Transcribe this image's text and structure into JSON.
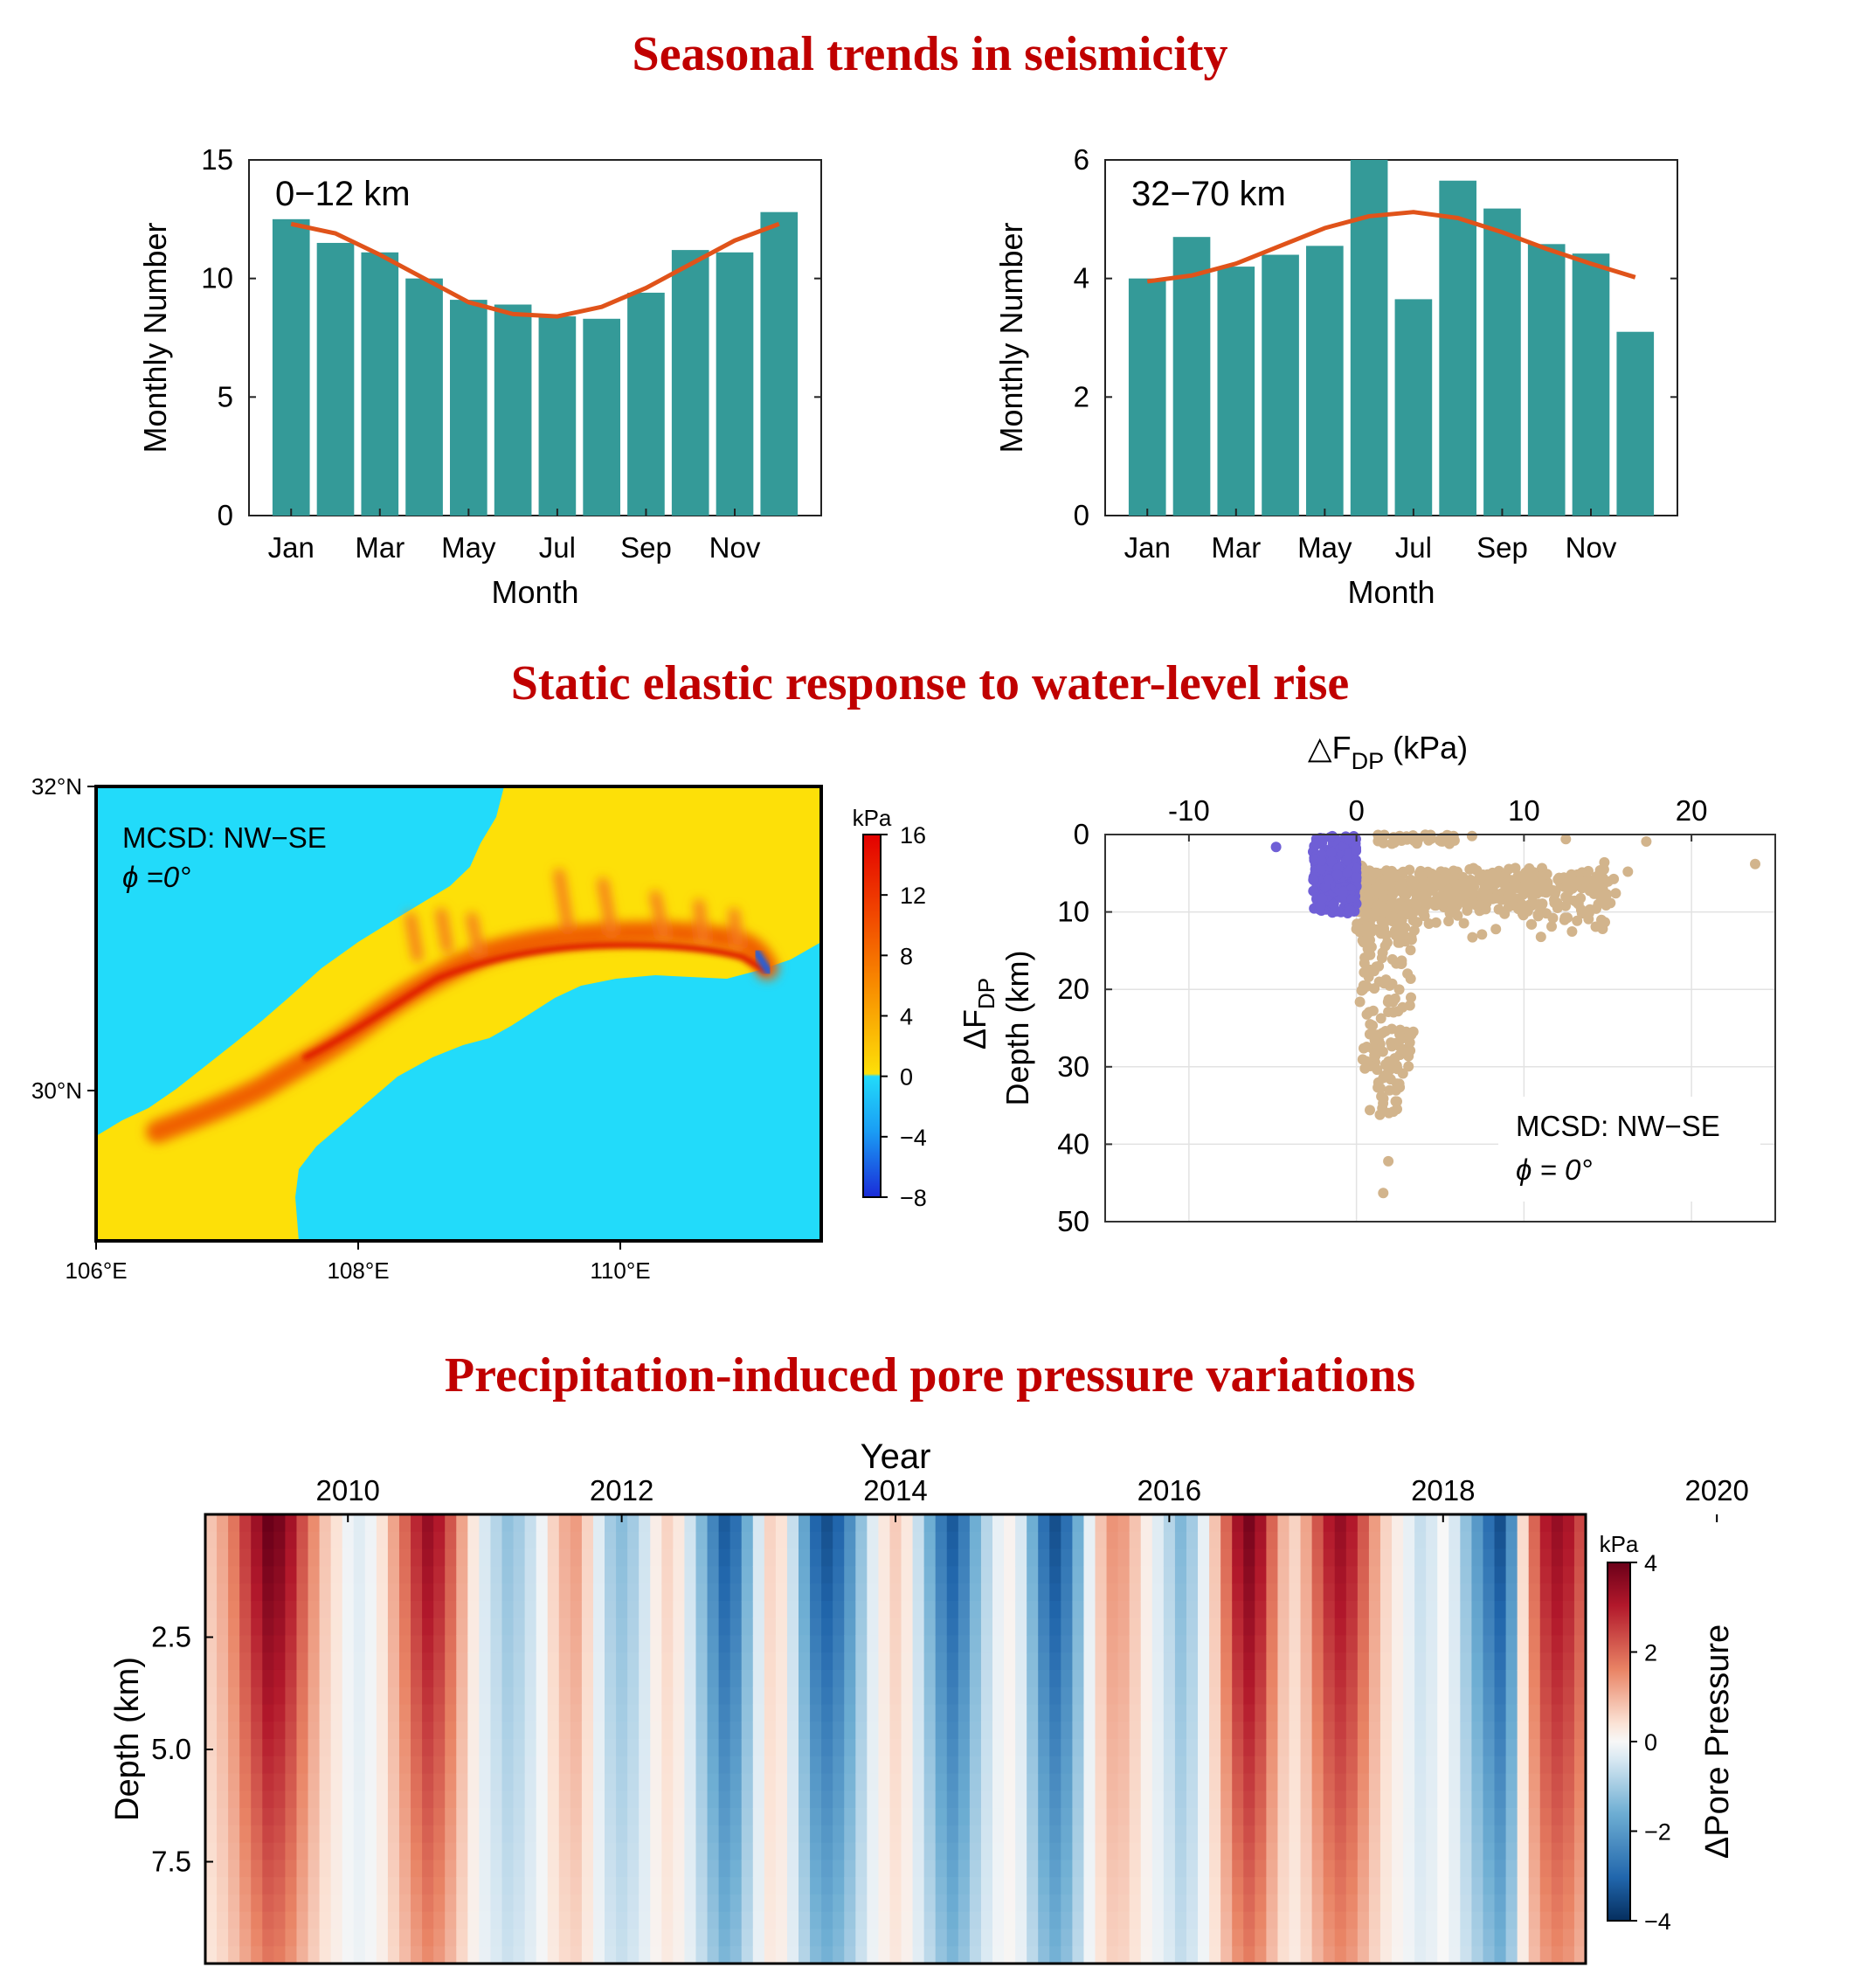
{
  "titles": {
    "seasonal": "Seasonal trends in seismicity",
    "static": "Static elastic response to water-level rise",
    "precip": "Precipitation-induced pore pressure variations"
  },
  "colors": {
    "title": "#c00000",
    "bar": "#349a98",
    "trend": "#e0531a",
    "map_neg": "#22dbfa",
    "map_pos": "#fde008",
    "scatter_pos": "#d2b48c",
    "scatter_neg": "#6f5fd6"
  },
  "chart_data": [
    {
      "type": "bar",
      "annotation": "0−12 km",
      "xlabel": "Month",
      "ylabel": "Monthly Number",
      "ylim": [
        0,
        15
      ],
      "yticks": [
        0,
        5,
        10,
        15
      ],
      "categories": [
        "Jan",
        "Feb",
        "Mar",
        "Apr",
        "May",
        "Jun",
        "Jul",
        "Aug",
        "Sep",
        "Oct",
        "Nov",
        "Dec"
      ],
      "tick_labels": [
        "Jan",
        "Mar",
        "May",
        "Jul",
        "Sep",
        "Nov"
      ],
      "values": [
        12.5,
        11.5,
        11.1,
        10.0,
        9.1,
        8.9,
        8.4,
        8.3,
        9.4,
        11.2,
        11.1,
        12.8
      ],
      "trend": [
        12.3,
        11.9,
        11.0,
        10.0,
        9.0,
        8.5,
        8.4,
        8.8,
        9.6,
        10.6,
        11.6,
        12.3
      ]
    },
    {
      "type": "bar",
      "annotation": "32−70 km",
      "xlabel": "Month",
      "ylabel": "Monthly Number",
      "ylim": [
        0,
        6
      ],
      "yticks": [
        0,
        2,
        4,
        6
      ],
      "categories": [
        "Jan",
        "Feb",
        "Mar",
        "Apr",
        "May",
        "Jun",
        "Jul",
        "Aug",
        "Sep",
        "Oct",
        "Nov",
        "Dec"
      ],
      "tick_labels": [
        "Jan",
        "Mar",
        "May",
        "Jul",
        "Sep",
        "Nov"
      ],
      "values": [
        4.0,
        4.7,
        4.2,
        4.4,
        4.55,
        6.0,
        3.65,
        5.65,
        5.18,
        4.58,
        4.42,
        3.1
      ],
      "trend": [
        3.95,
        4.05,
        4.25,
        4.55,
        4.85,
        5.05,
        5.12,
        5.02,
        4.78,
        4.5,
        4.25,
        4.02
      ]
    },
    {
      "type": "heatmap",
      "annotation_lines": [
        "MCSD: NW−SE",
        "ϕ =0°"
      ],
      "x_ticks": [
        "106°E",
        "108°E",
        "110°E"
      ],
      "y_ticks": [
        "32°N",
        "30°N"
      ],
      "colorbar": {
        "unit": "kPa",
        "label": "ΔF",
        "label_sub": "DP",
        "ticks": [
          "16",
          "12",
          "8",
          "4",
          "0",
          "−4",
          "−8"
        ],
        "range": [
          -8,
          16
        ]
      }
    },
    {
      "type": "scatter",
      "xlabel": "△F",
      "xlabel_sub": "DP",
      "xlabel_unit": " (kPa)",
      "ylabel": "Depth (km)",
      "xlim": [
        -15,
        25
      ],
      "ylim": [
        0,
        50
      ],
      "x_ticks": [
        "-10",
        "0",
        "10",
        "20"
      ],
      "y_ticks": [
        "0",
        "10",
        "20",
        "30",
        "40",
        "50"
      ],
      "annotation_lines": [
        "MCSD: NW−SE",
        "ϕ = 0°"
      ]
    },
    {
      "type": "heatmap",
      "xlabel": "Year",
      "ylabel": "Depth (km)",
      "x_ticks": [
        "2010",
        "2012",
        "2014",
        "2016",
        "2018",
        "2020"
      ],
      "y_ticks": [
        "2.5",
        "5.0",
        "7.5"
      ],
      "colorbar": {
        "unit": "kPa",
        "label": "ΔPore Pressure",
        "ticks": [
          "4",
          "2",
          "0",
          "−2",
          "−4"
        ],
        "range": [
          -4,
          4
        ]
      },
      "monthly_surface_values_kPa": [
        0.8,
        1.2,
        1.8,
        2.6,
        3.3,
        4.0,
        3.8,
        3.2,
        2.3,
        1.5,
        0.8,
        0.4,
        -0.1,
        -0.3,
        -0.1,
        0.4,
        1.2,
        2.0,
        2.8,
        3.4,
        3.0,
        2.2,
        1.2,
        0.3,
        -0.4,
        -0.8,
        -1.2,
        -1.0,
        -0.6,
        -0.1,
        0.6,
        1.1,
        1.3,
        0.6,
        -0.3,
        -1.0,
        -1.3,
        -1.0,
        -0.5,
        0.2,
        0.6,
        0.3,
        -0.5,
        -1.4,
        -2.4,
        -3.2,
        -2.8,
        -1.6,
        -0.4,
        0.6,
        0.4,
        -0.6,
        -1.8,
        -3.0,
        -3.4,
        -3.0,
        -2.2,
        -1.2,
        -0.3,
        0.3,
        0.7,
        0.3,
        -0.6,
        -1.6,
        -2.6,
        -3.2,
        -2.6,
        -1.6,
        -0.8,
        -0.2,
        0.1,
        -0.4,
        -1.6,
        -2.8,
        -3.4,
        -2.8,
        -1.6,
        -0.2,
        0.8,
        1.4,
        1.3,
        0.8,
        0.2,
        -0.3,
        -0.8,
        -1.4,
        -1.0,
        -0.2,
        0.8,
        2.0,
        3.2,
        3.8,
        3.2,
        2.0,
        1.0,
        0.6,
        1.2,
        2.2,
        3.0,
        3.4,
        3.0,
        2.2,
        1.3,
        0.6,
        0.2,
        -0.2,
        -0.6,
        -0.4,
        0.0,
        -0.4,
        -1.2,
        -2.0,
        -2.8,
        -3.4,
        -2.2,
        0.5,
        2.0,
        3.0,
        3.4,
        3.1,
        2.4
      ]
    }
  ]
}
